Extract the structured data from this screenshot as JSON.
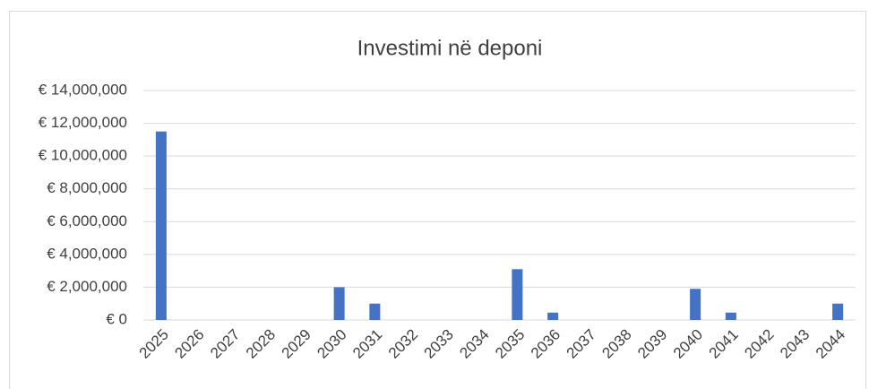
{
  "chart_data": {
    "type": "bar",
    "title": "Investimi në deponi",
    "categories": [
      "2025",
      "2026",
      "2027",
      "2028",
      "2029",
      "2030",
      "2031",
      "2032",
      "2033",
      "2034",
      "2035",
      "2036",
      "2037",
      "2038",
      "2039",
      "2040",
      "2041",
      "2042",
      "2043",
      "2044"
    ],
    "values": [
      11500000,
      0,
      0,
      0,
      0,
      2000000,
      1000000,
      0,
      0,
      0,
      3100000,
      450000,
      0,
      0,
      0,
      1900000,
      450000,
      0,
      0,
      1000000
    ],
    "color": "#4472c4",
    "ylim": [
      0,
      14000000
    ],
    "yticks": [
      {
        "value": 0,
        "label": "€ 0"
      },
      {
        "value": 2000000,
        "label": "€ 2,000,000"
      },
      {
        "value": 4000000,
        "label": "€ 4,000,000"
      },
      {
        "value": 6000000,
        "label": "€ 6,000,000"
      },
      {
        "value": 8000000,
        "label": "€ 8,000,000"
      },
      {
        "value": 10000000,
        "label": "€ 10,000,000"
      },
      {
        "value": 12000000,
        "label": "€ 12,000,000"
      },
      {
        "value": 14000000,
        "label": "€ 14,000,000"
      }
    ],
    "grid": true
  }
}
